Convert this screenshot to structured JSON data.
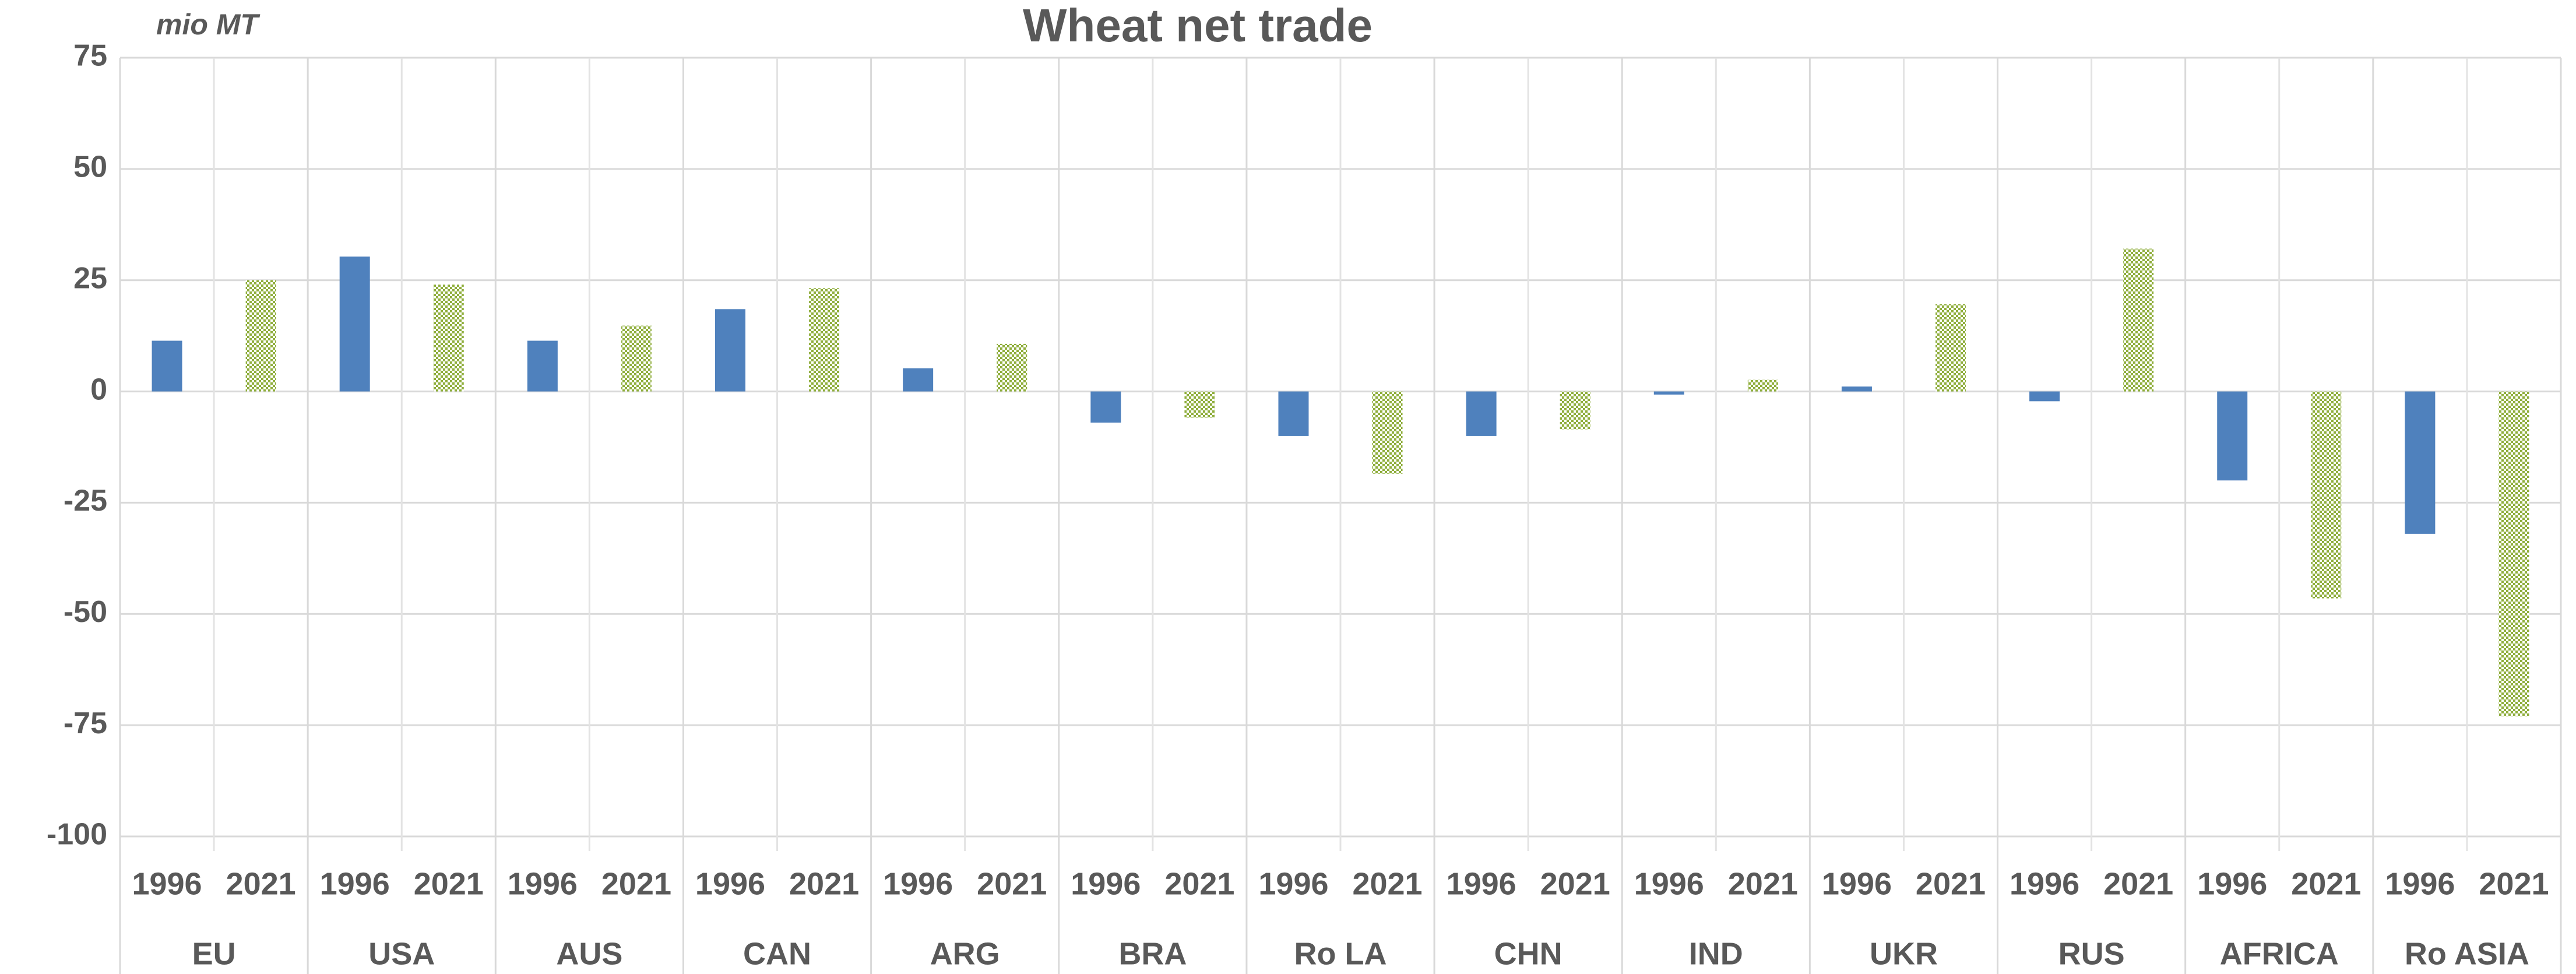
{
  "chart_data": {
    "type": "bar",
    "title": "Wheat net trade",
    "y_label": "mio MT",
    "groups": [
      {
        "name": "EU",
        "categories": [
          "1996",
          "2021"
        ],
        "values": [
          11.4,
          25
        ]
      },
      {
        "name": "USA",
        "categories": [
          "1996",
          "2021"
        ],
        "values": [
          30.3,
          24
        ]
      },
      {
        "name": "AUS",
        "categories": [
          "1996",
          "2021"
        ],
        "values": [
          11.4,
          14.8
        ]
      },
      {
        "name": "CAN",
        "categories": [
          "1996",
          "2021"
        ],
        "values": [
          18.5,
          23.2
        ]
      },
      {
        "name": "ARG",
        "categories": [
          "1996",
          "2021"
        ],
        "values": [
          5.2,
          10.7
        ]
      },
      {
        "name": "BRA",
        "categories": [
          "1996",
          "2021"
        ],
        "values": [
          -7,
          -5.9
        ]
      },
      {
        "name": "Ro LA",
        "categories": [
          "1996",
          "2021"
        ],
        "values": [
          -10,
          -18.5
        ]
      },
      {
        "name": "CHN",
        "categories": [
          "1996",
          "2021"
        ],
        "values": [
          -10,
          -8.5
        ]
      },
      {
        "name": "IND",
        "categories": [
          "1996",
          "2021"
        ],
        "values": [
          -0.7,
          2.6
        ]
      },
      {
        "name": "UKR",
        "categories": [
          "1996",
          "2021"
        ],
        "values": [
          1.1,
          19.6
        ]
      },
      {
        "name": "RUS",
        "categories": [
          "1996",
          "2021"
        ],
        "values": [
          -2.2,
          32.1
        ]
      },
      {
        "name": "AFRICA",
        "categories": [
          "1996",
          "2021"
        ],
        "values": [
          -20,
          -46.5
        ]
      },
      {
        "name": "Ro ASIA",
        "categories": [
          "1996",
          "2021"
        ],
        "values": [
          -32,
          -73
        ]
      }
    ],
    "colors": [
      "#4f81bd",
      "#8fae3c"
    ],
    "patterns": [
      "solid",
      "dotted"
    ],
    "ylim": [
      -100,
      75
    ],
    "yticks": [
      -100,
      -75,
      -50,
      -25,
      0,
      25,
      50,
      75
    ],
    "grid": true
  }
}
